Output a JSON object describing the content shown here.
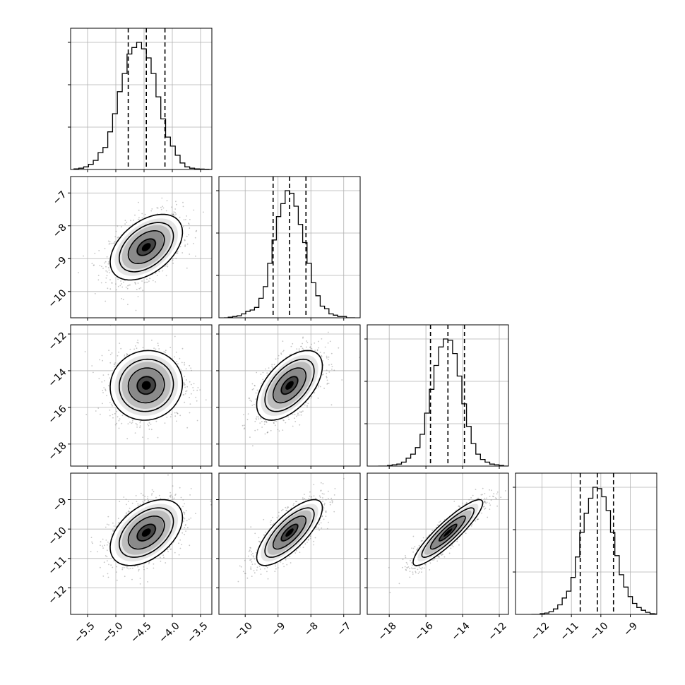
{
  "chart_data": {
    "type": "corner",
    "variables": [
      {
        "range": [
          -5.8,
          -3.3
        ],
        "ticks": [
          -5.5,
          -5.0,
          -4.5,
          -4.0,
          -3.5
        ],
        "tick_labels": [
          "−5.5",
          "−5.0",
          "−4.5",
          "−4.0",
          "−3.5"
        ],
        "quantiles": [
          -4.78,
          -4.46,
          -4.13
        ],
        "mean": -4.46,
        "sd": 0.32,
        "hist": [
          0.005,
          0.01,
          0.02,
          0.04,
          0.07,
          0.13,
          0.17,
          0.29,
          0.43,
          0.6,
          0.74,
          0.89,
          0.94,
          0.98,
          0.93,
          0.86,
          0.74,
          0.56,
          0.39,
          0.25,
          0.18,
          0.11,
          0.05,
          0.02,
          0.01,
          0.005,
          0.003,
          0.002,
          0,
          0
        ]
      },
      {
        "range": [
          -10.8,
          -6.5
        ],
        "ticks": [
          -10,
          -9,
          -8,
          -7
        ],
        "tick_labels": [
          "−10",
          "−9",
          "−8",
          "−7"
        ],
        "quantiles": [
          -9.15,
          -8.65,
          -8.15
        ],
        "mean": -8.65,
        "sd": 0.5,
        "hist": [
          0,
          0.005,
          0.01,
          0.015,
          0.03,
          0.05,
          0.06,
          0.08,
          0.15,
          0.24,
          0.42,
          0.6,
          0.78,
          0.88,
          0.98,
          0.96,
          0.86,
          0.72,
          0.58,
          0.42,
          0.27,
          0.17,
          0.09,
          0.07,
          0.03,
          0.02,
          0.01,
          0.01,
          0,
          0
        ]
      },
      {
        "range": [
          -19.2,
          -11.5
        ],
        "ticks": [
          -18,
          -16,
          -14,
          -12
        ],
        "tick_labels": [
          "−18",
          "−16",
          "−14",
          "−12"
        ],
        "quantiles": [
          -15.75,
          -14.8,
          -13.9
        ],
        "mean": -14.8,
        "sd": 0.95,
        "hist": [
          0,
          0,
          0.005,
          0.01,
          0.015,
          0.03,
          0.06,
          0.09,
          0.14,
          0.24,
          0.4,
          0.58,
          0.76,
          0.9,
          0.96,
          0.95,
          0.85,
          0.68,
          0.47,
          0.3,
          0.17,
          0.09,
          0.05,
          0.03,
          0.015,
          0.01,
          0.005,
          0,
          0,
          0
        ]
      },
      {
        "range": [
          -12.9,
          -8.1
        ],
        "ticks": [
          -12,
          -11,
          -10,
          -9
        ],
        "tick_labels": [
          "−12",
          "−11",
          "−10",
          "−9"
        ],
        "quantiles": [
          -10.7,
          -10.12,
          -9.57
        ],
        "mean": -10.12,
        "sd": 0.56,
        "hist": [
          0,
          0,
          0.005,
          0.01,
          0.02,
          0.04,
          0.07,
          0.12,
          0.17,
          0.27,
          0.42,
          0.6,
          0.74,
          0.85,
          0.93,
          0.92,
          0.86,
          0.76,
          0.6,
          0.43,
          0.29,
          0.2,
          0.13,
          0.08,
          0.05,
          0.03,
          0.015,
          0.005,
          0.003,
          0
        ]
      }
    ],
    "correlations": [
      {
        "pair": [
          1,
          0
        ],
        "rho": 0.45
      },
      {
        "pair": [
          2,
          0
        ],
        "rho": 0.05
      },
      {
        "pair": [
          2,
          1
        ],
        "rho": 0.55
      },
      {
        "pair": [
          3,
          0
        ],
        "rho": 0.45
      },
      {
        "pair": [
          3,
          1
        ],
        "rho": 0.75
      },
      {
        "pair": [
          3,
          2
        ],
        "rho": 0.9
      }
    ],
    "contour_levels": [
      0.5,
      1.0,
      1.5,
      2.0
    ],
    "grid": true
  }
}
